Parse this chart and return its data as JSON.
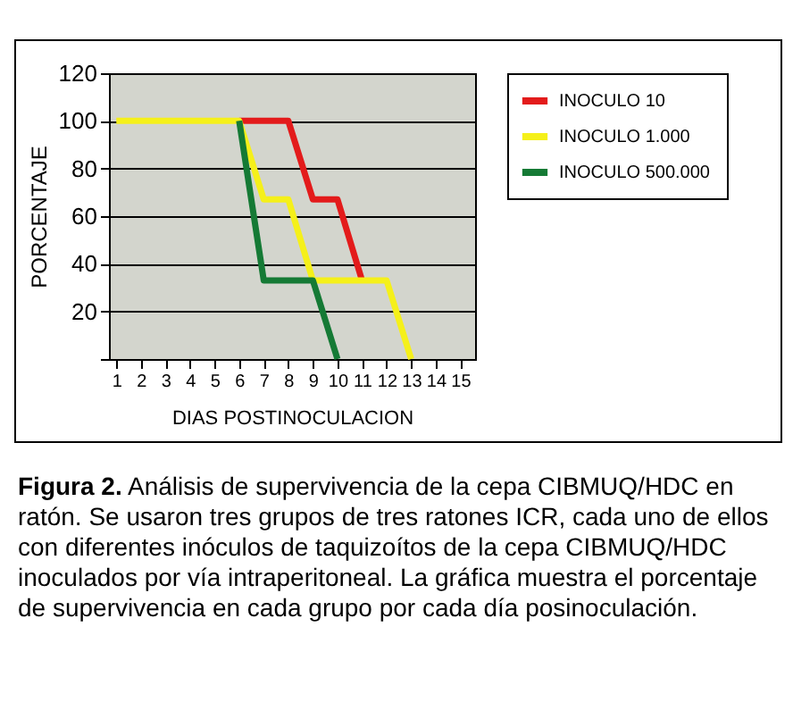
{
  "chart_data": {
    "type": "line",
    "xlabel": "DIAS POSTINOCULACION",
    "ylabel": "PORCENTAJE",
    "xlim": [
      0.7,
      15.6
    ],
    "xticks": [
      1,
      2,
      3,
      4,
      5,
      6,
      7,
      8,
      9,
      10,
      11,
      12,
      13,
      14,
      15
    ],
    "ylim": [
      0,
      120
    ],
    "yticks": [
      {
        "value": 0,
        "label": null
      },
      20,
      40,
      60,
      80,
      100,
      120
    ],
    "grid": "y",
    "legend": "right",
    "marker": "none",
    "line_style": "solid",
    "series": [
      {
        "name": "INOCULO  10",
        "color": "#e31b1b",
        "x": [
          6,
          8,
          9,
          10,
          11
        ],
        "values": [
          100,
          100,
          67,
          67,
          33
        ]
      },
      {
        "name": "INOCULO  1.000",
        "color": "#f5f01a",
        "x": [
          1,
          6,
          7,
          8,
          9,
          12,
          13
        ],
        "values": [
          100,
          100,
          67,
          67,
          33,
          33,
          0
        ]
      },
      {
        "name": "INOCULO  500.000",
        "color": "#157a35",
        "x": [
          6,
          7,
          9,
          10
        ],
        "values": [
          100,
          33,
          33,
          0
        ]
      }
    ],
    "annotations": [
      "Figura 2.",
      "Análisis de supervivencia de la cepa CIBMUQ/HDC en ratón. Se usaron tres grupos de tres ratones ICR, cada uno de ellos con diferentes inóculos de taquizoítos de la cepa CIBMUQ/HDC inoculados por vía intraperitoneal. La gráfica muestra el porcentaje de supervivencia en cada grupo por cada día posinoculación."
    ]
  }
}
